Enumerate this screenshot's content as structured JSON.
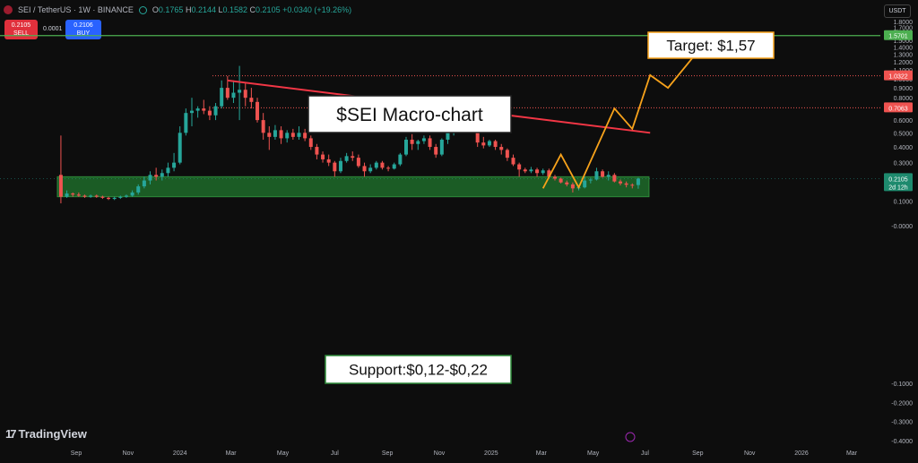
{
  "header": {
    "symbol": "SEI / TetherUS · 1W · BINANCE",
    "open_label": "O",
    "open": "0.1765",
    "high_label": "H",
    "high": "0.2144",
    "low_label": "L",
    "low": "0.1582",
    "close_label": "C",
    "close": "0.2105",
    "change": "+0.0340 (+19.26%)"
  },
  "trade": {
    "sell_price": "0.2105",
    "sell_label": "SELL",
    "spread": "0.0001",
    "buy_price": "0.2106",
    "buy_label": "BUY"
  },
  "currency": "USDT",
  "branding": "TradingView",
  "colors": {
    "up": "#26a69a",
    "down": "#ef5350",
    "trendline": "#f23645",
    "projection": "#f7a21b",
    "target_line": "#4caf50",
    "support_zone": "#1e6b2a"
  },
  "chart_data": {
    "type": "candlestick",
    "title": "$SEI Macro-chart",
    "y_scale": "log",
    "ylim": [
      -0.4,
      1.8
    ],
    "grid": false,
    "y_ticks": [
      "1.8000",
      "1.7000",
      "1.6000",
      "1.5000",
      "1.4000",
      "1.3000",
      "1.2000",
      "1.1000",
      "1.0000",
      "0.9000",
      "0.8000",
      "0.7000",
      "0.6000",
      "0.5000",
      "0.4000",
      "0.3000",
      "0.2000",
      "0.1000",
      "-0.0000",
      "-0.1000",
      "-0.2000",
      "-0.3000",
      "-0.4000"
    ],
    "x_ticks": [
      "Sep",
      "Nov",
      "2024",
      "Mar",
      "May",
      "Jul",
      "Sep",
      "Nov",
      "2025",
      "Mar",
      "May",
      "Jul",
      "Sep",
      "Nov",
      "2026",
      "Mar"
    ],
    "price_labels": [
      {
        "value": 1.5701,
        "text": "1.5701",
        "kind": "target"
      },
      {
        "value": 1.0322,
        "text": "1.0322",
        "kind": "resistance"
      },
      {
        "value": 0.7063,
        "text": "0.7063",
        "kind": "resistance"
      },
      {
        "value": 0.2105,
        "text": "0.2105",
        "sub": "2d 12h",
        "kind": "last"
      }
    ],
    "candles": [
      {
        "date": "2023-08-14",
        "o": 0.23,
        "h": 0.48,
        "l": 0.09,
        "c": 0.12
      },
      {
        "date": "2023-08-21",
        "o": 0.12,
        "h": 0.15,
        "l": 0.115,
        "c": 0.135
      },
      {
        "date": "2023-08-28",
        "o": 0.135,
        "h": 0.14,
        "l": 0.12,
        "c": 0.13
      },
      {
        "date": "2023-09-04",
        "o": 0.13,
        "h": 0.14,
        "l": 0.12,
        "c": 0.125
      },
      {
        "date": "2023-09-11",
        "o": 0.125,
        "h": 0.13,
        "l": 0.115,
        "c": 0.12
      },
      {
        "date": "2023-09-18",
        "o": 0.12,
        "h": 0.13,
        "l": 0.115,
        "c": 0.125
      },
      {
        "date": "2023-09-25",
        "o": 0.125,
        "h": 0.13,
        "l": 0.115,
        "c": 0.12
      },
      {
        "date": "2023-10-02",
        "o": 0.12,
        "h": 0.125,
        "l": 0.11,
        "c": 0.115
      },
      {
        "date": "2023-10-09",
        "o": 0.115,
        "h": 0.12,
        "l": 0.105,
        "c": 0.11
      },
      {
        "date": "2023-10-16",
        "o": 0.11,
        "h": 0.12,
        "l": 0.105,
        "c": 0.115
      },
      {
        "date": "2023-10-23",
        "o": 0.115,
        "h": 0.125,
        "l": 0.11,
        "c": 0.12
      },
      {
        "date": "2023-10-30",
        "o": 0.12,
        "h": 0.13,
        "l": 0.115,
        "c": 0.125
      },
      {
        "date": "2023-11-06",
        "o": 0.125,
        "h": 0.15,
        "l": 0.12,
        "c": 0.14
      },
      {
        "date": "2023-11-13",
        "o": 0.14,
        "h": 0.18,
        "l": 0.13,
        "c": 0.17
      },
      {
        "date": "2023-11-20",
        "o": 0.17,
        "h": 0.22,
        "l": 0.16,
        "c": 0.2
      },
      {
        "date": "2023-11-27",
        "o": 0.2,
        "h": 0.25,
        "l": 0.18,
        "c": 0.23
      },
      {
        "date": "2023-12-04",
        "o": 0.23,
        "h": 0.27,
        "l": 0.2,
        "c": 0.22
      },
      {
        "date": "2023-12-11",
        "o": 0.22,
        "h": 0.26,
        "l": 0.2,
        "c": 0.24
      },
      {
        "date": "2023-12-18",
        "o": 0.24,
        "h": 0.3,
        "l": 0.22,
        "c": 0.27
      },
      {
        "date": "2023-12-25",
        "o": 0.27,
        "h": 0.36,
        "l": 0.25,
        "c": 0.3
      },
      {
        "date": "2024-01-01",
        "o": 0.3,
        "h": 0.55,
        "l": 0.29,
        "c": 0.5
      },
      {
        "date": "2024-01-08",
        "o": 0.5,
        "h": 0.7,
        "l": 0.48,
        "c": 0.66
      },
      {
        "date": "2024-01-15",
        "o": 0.66,
        "h": 0.8,
        "l": 0.55,
        "c": 0.68
      },
      {
        "date": "2024-01-22",
        "o": 0.68,
        "h": 0.72,
        "l": 0.62,
        "c": 0.7
      },
      {
        "date": "2024-01-29",
        "o": 0.7,
        "h": 0.78,
        "l": 0.65,
        "c": 0.68
      },
      {
        "date": "2024-02-05",
        "o": 0.68,
        "h": 0.72,
        "l": 0.6,
        "c": 0.64
      },
      {
        "date": "2024-02-12",
        "o": 0.64,
        "h": 0.75,
        "l": 0.6,
        "c": 0.72
      },
      {
        "date": "2024-02-19",
        "o": 0.72,
        "h": 0.98,
        "l": 0.7,
        "c": 0.9
      },
      {
        "date": "2024-02-26",
        "o": 0.9,
        "h": 1.03,
        "l": 0.78,
        "c": 0.8
      },
      {
        "date": "2024-03-04",
        "o": 0.8,
        "h": 0.98,
        "l": 0.75,
        "c": 0.85
      },
      {
        "date": "2024-03-11",
        "o": 0.85,
        "h": 1.15,
        "l": 0.6,
        "c": 0.88
      },
      {
        "date": "2024-03-18",
        "o": 0.88,
        "h": 0.95,
        "l": 0.72,
        "c": 0.8
      },
      {
        "date": "2024-03-25",
        "o": 0.8,
        "h": 0.9,
        "l": 0.7,
        "c": 0.76
      },
      {
        "date": "2024-04-01",
        "o": 0.76,
        "h": 0.8,
        "l": 0.58,
        "c": 0.6
      },
      {
        "date": "2024-04-08",
        "o": 0.6,
        "h": 0.66,
        "l": 0.45,
        "c": 0.5
      },
      {
        "date": "2024-04-15",
        "o": 0.5,
        "h": 0.55,
        "l": 0.38,
        "c": 0.47
      },
      {
        "date": "2024-04-22",
        "o": 0.47,
        "h": 0.56,
        "l": 0.45,
        "c": 0.52
      },
      {
        "date": "2024-04-29",
        "o": 0.52,
        "h": 0.55,
        "l": 0.42,
        "c": 0.46
      },
      {
        "date": "2024-05-06",
        "o": 0.46,
        "h": 0.52,
        "l": 0.43,
        "c": 0.5
      },
      {
        "date": "2024-05-13",
        "o": 0.5,
        "h": 0.53,
        "l": 0.45,
        "c": 0.47
      },
      {
        "date": "2024-05-20",
        "o": 0.47,
        "h": 0.55,
        "l": 0.45,
        "c": 0.5
      },
      {
        "date": "2024-05-27",
        "o": 0.5,
        "h": 0.53,
        "l": 0.44,
        "c": 0.46
      },
      {
        "date": "2024-06-03",
        "o": 0.46,
        "h": 0.48,
        "l": 0.38,
        "c": 0.4
      },
      {
        "date": "2024-06-10",
        "o": 0.4,
        "h": 0.42,
        "l": 0.32,
        "c": 0.35
      },
      {
        "date": "2024-06-17",
        "o": 0.35,
        "h": 0.37,
        "l": 0.3,
        "c": 0.32
      },
      {
        "date": "2024-06-24",
        "o": 0.32,
        "h": 0.35,
        "l": 0.28,
        "c": 0.3
      },
      {
        "date": "2024-07-01",
        "o": 0.3,
        "h": 0.31,
        "l": 0.22,
        "c": 0.25
      },
      {
        "date": "2024-07-08",
        "o": 0.25,
        "h": 0.33,
        "l": 0.24,
        "c": 0.31
      },
      {
        "date": "2024-07-15",
        "o": 0.31,
        "h": 0.36,
        "l": 0.3,
        "c": 0.34
      },
      {
        "date": "2024-07-22",
        "o": 0.34,
        "h": 0.37,
        "l": 0.31,
        "c": 0.33
      },
      {
        "date": "2024-07-29",
        "o": 0.33,
        "h": 0.35,
        "l": 0.27,
        "c": 0.28
      },
      {
        "date": "2024-08-05",
        "o": 0.28,
        "h": 0.3,
        "l": 0.22,
        "c": 0.25
      },
      {
        "date": "2024-08-12",
        "o": 0.25,
        "h": 0.29,
        "l": 0.24,
        "c": 0.27
      },
      {
        "date": "2024-08-19",
        "o": 0.27,
        "h": 0.31,
        "l": 0.26,
        "c": 0.3
      },
      {
        "date": "2024-08-26",
        "o": 0.3,
        "h": 0.31,
        "l": 0.26,
        "c": 0.27
      },
      {
        "date": "2024-09-02",
        "o": 0.27,
        "h": 0.28,
        "l": 0.25,
        "c": 0.265
      },
      {
        "date": "2024-09-09",
        "o": 0.265,
        "h": 0.3,
        "l": 0.26,
        "c": 0.29
      },
      {
        "date": "2024-09-16",
        "o": 0.29,
        "h": 0.36,
        "l": 0.28,
        "c": 0.35
      },
      {
        "date": "2024-09-23",
        "o": 0.35,
        "h": 0.47,
        "l": 0.34,
        "c": 0.45
      },
      {
        "date": "2024-09-30",
        "o": 0.45,
        "h": 0.49,
        "l": 0.38,
        "c": 0.42
      },
      {
        "date": "2024-10-07",
        "o": 0.42,
        "h": 0.45,
        "l": 0.38,
        "c": 0.44
      },
      {
        "date": "2024-10-14",
        "o": 0.44,
        "h": 0.48,
        "l": 0.42,
        "c": 0.46
      },
      {
        "date": "2024-10-21",
        "o": 0.46,
        "h": 0.48,
        "l": 0.38,
        "c": 0.4
      },
      {
        "date": "2024-10-28",
        "o": 0.4,
        "h": 0.42,
        "l": 0.33,
        "c": 0.35
      },
      {
        "date": "2024-11-04",
        "o": 0.35,
        "h": 0.46,
        "l": 0.34,
        "c": 0.45
      },
      {
        "date": "2024-11-11",
        "o": 0.45,
        "h": 0.52,
        "l": 0.42,
        "c": 0.5
      },
      {
        "date": "2024-11-18",
        "o": 0.5,
        "h": 0.65,
        "l": 0.48,
        "c": 0.64
      },
      {
        "date": "2024-11-25",
        "o": 0.64,
        "h": 0.72,
        "l": 0.58,
        "c": 0.62
      },
      {
        "date": "2024-12-02",
        "o": 0.62,
        "h": 0.75,
        "l": 0.6,
        "c": 0.7
      },
      {
        "date": "2024-12-09",
        "o": 0.7,
        "h": 0.71,
        "l": 0.5,
        "c": 0.54
      },
      {
        "date": "2024-12-16",
        "o": 0.54,
        "h": 0.56,
        "l": 0.4,
        "c": 0.43
      },
      {
        "date": "2024-12-23",
        "o": 0.43,
        "h": 0.47,
        "l": 0.39,
        "c": 0.41
      },
      {
        "date": "2024-12-30",
        "o": 0.41,
        "h": 0.45,
        "l": 0.4,
        "c": 0.44
      },
      {
        "date": "2025-01-06",
        "o": 0.44,
        "h": 0.45,
        "l": 0.38,
        "c": 0.4
      },
      {
        "date": "2025-01-13",
        "o": 0.4,
        "h": 0.42,
        "l": 0.35,
        "c": 0.38
      },
      {
        "date": "2025-01-20",
        "o": 0.38,
        "h": 0.39,
        "l": 0.31,
        "c": 0.33
      },
      {
        "date": "2025-01-27",
        "o": 0.33,
        "h": 0.35,
        "l": 0.28,
        "c": 0.29
      },
      {
        "date": "2025-02-03",
        "o": 0.29,
        "h": 0.3,
        "l": 0.22,
        "c": 0.26
      },
      {
        "date": "2025-02-10",
        "o": 0.26,
        "h": 0.27,
        "l": 0.24,
        "c": 0.25
      },
      {
        "date": "2025-02-17",
        "o": 0.25,
        "h": 0.275,
        "l": 0.24,
        "c": 0.26
      },
      {
        "date": "2025-02-24",
        "o": 0.26,
        "h": 0.27,
        "l": 0.22,
        "c": 0.24
      },
      {
        "date": "2025-03-03",
        "o": 0.24,
        "h": 0.265,
        "l": 0.23,
        "c": 0.255
      },
      {
        "date": "2025-03-10",
        "o": 0.255,
        "h": 0.265,
        "l": 0.21,
        "c": 0.22
      },
      {
        "date": "2025-03-17",
        "o": 0.22,
        "h": 0.23,
        "l": 0.2,
        "c": 0.21
      },
      {
        "date": "2025-03-24",
        "o": 0.21,
        "h": 0.215,
        "l": 0.185,
        "c": 0.19
      },
      {
        "date": "2025-03-31",
        "o": 0.19,
        "h": 0.2,
        "l": 0.17,
        "c": 0.18
      },
      {
        "date": "2025-04-07",
        "o": 0.18,
        "h": 0.19,
        "l": 0.14,
        "c": 0.16
      },
      {
        "date": "2025-04-14",
        "o": 0.16,
        "h": 0.175,
        "l": 0.15,
        "c": 0.165
      },
      {
        "date": "2025-04-21",
        "o": 0.165,
        "h": 0.22,
        "l": 0.16,
        "c": 0.2
      },
      {
        "date": "2025-04-28",
        "o": 0.2,
        "h": 0.215,
        "l": 0.185,
        "c": 0.205
      },
      {
        "date": "2025-05-05",
        "o": 0.205,
        "h": 0.27,
        "l": 0.2,
        "c": 0.25
      },
      {
        "date": "2025-05-12",
        "o": 0.25,
        "h": 0.26,
        "l": 0.215,
        "c": 0.22
      },
      {
        "date": "2025-05-19",
        "o": 0.22,
        "h": 0.25,
        "l": 0.2,
        "c": 0.23
      },
      {
        "date": "2025-05-26",
        "o": 0.23,
        "h": 0.24,
        "l": 0.19,
        "c": 0.195
      },
      {
        "date": "2025-06-02",
        "o": 0.195,
        "h": 0.205,
        "l": 0.175,
        "c": 0.185
      },
      {
        "date": "2025-06-09",
        "o": 0.185,
        "h": 0.195,
        "l": 0.165,
        "c": 0.178
      },
      {
        "date": "2025-06-16",
        "o": 0.178,
        "h": 0.185,
        "l": 0.16,
        "c": 0.1765
      },
      {
        "date": "2025-06-23",
        "o": 0.1765,
        "h": 0.2144,
        "l": 0.1582,
        "c": 0.2105
      }
    ],
    "annotations": {
      "title_box": "$SEI Macro-chart",
      "target_box": "Target: $1,57",
      "support_box": "Support:$0,12-$0,22",
      "support_zone": [
        0.12,
        0.22
      ],
      "trendline": [
        {
          "date": "2024-02-26",
          "value": 0.98
        },
        {
          "date": "2025-07-07",
          "value": 0.5
        }
      ],
      "projection": [
        {
          "date": "2025-03-03",
          "value": 0.16
        },
        {
          "date": "2025-03-24",
          "value": 0.35
        },
        {
          "date": "2025-04-14",
          "value": 0.165
        },
        {
          "date": "2025-05-26",
          "value": 0.7
        },
        {
          "date": "2025-06-16",
          "value": 0.53
        },
        {
          "date": "2025-07-07",
          "value": 1.04
        },
        {
          "date": "2025-07-28",
          "value": 0.9
        },
        {
          "date": "2025-09-15",
          "value": 1.55
        }
      ]
    }
  }
}
